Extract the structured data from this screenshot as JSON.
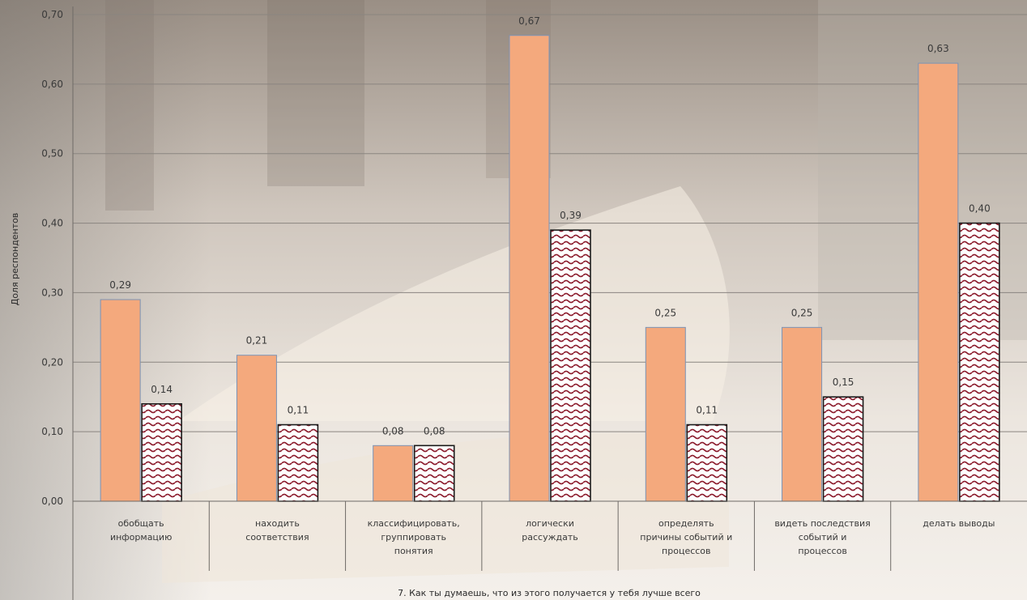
{
  "chart_data": {
    "type": "bar",
    "title": "",
    "xlabel": "7. Как ты думаешь, что из этого получается у тебя лучше всего",
    "ylabel": "Доля респондентов",
    "ylim": [
      0,
      0.7
    ],
    "yticks": [
      "0,00",
      "0,10",
      "0,20",
      "0,30",
      "0,40",
      "0,50",
      "0,60",
      "0,70"
    ],
    "grid": true,
    "categories": [
      [
        "обобщать",
        "информацию"
      ],
      [
        "находить",
        "соответствия"
      ],
      [
        "классифицировать,",
        "группировать",
        "понятия"
      ],
      [
        "логически",
        "рассуждать"
      ],
      [
        "определять",
        "причины событий и",
        "процессов"
      ],
      [
        "видеть последствия",
        "событий и",
        "процессов"
      ],
      [
        "делать выводы"
      ]
    ],
    "series": [
      {
        "values": [
          0.29,
          0.21,
          0.08,
          0.67,
          0.25,
          0.25,
          0.63
        ],
        "labels": [
          "0,29",
          "0,21",
          "0,08",
          "0,67",
          "0,25",
          "0,25",
          "0,63"
        ],
        "color": "#f4a97d",
        "pattern": "solid"
      },
      {
        "values": [
          0.14,
          0.11,
          0.08,
          0.39,
          0.11,
          0.15,
          0.4
        ],
        "labels": [
          "0,14",
          "0,11",
          "0,08",
          "0,39",
          "0,11",
          "0,15",
          "0,40"
        ],
        "color": "#8b1a2b",
        "pattern": "wave"
      }
    ]
  }
}
